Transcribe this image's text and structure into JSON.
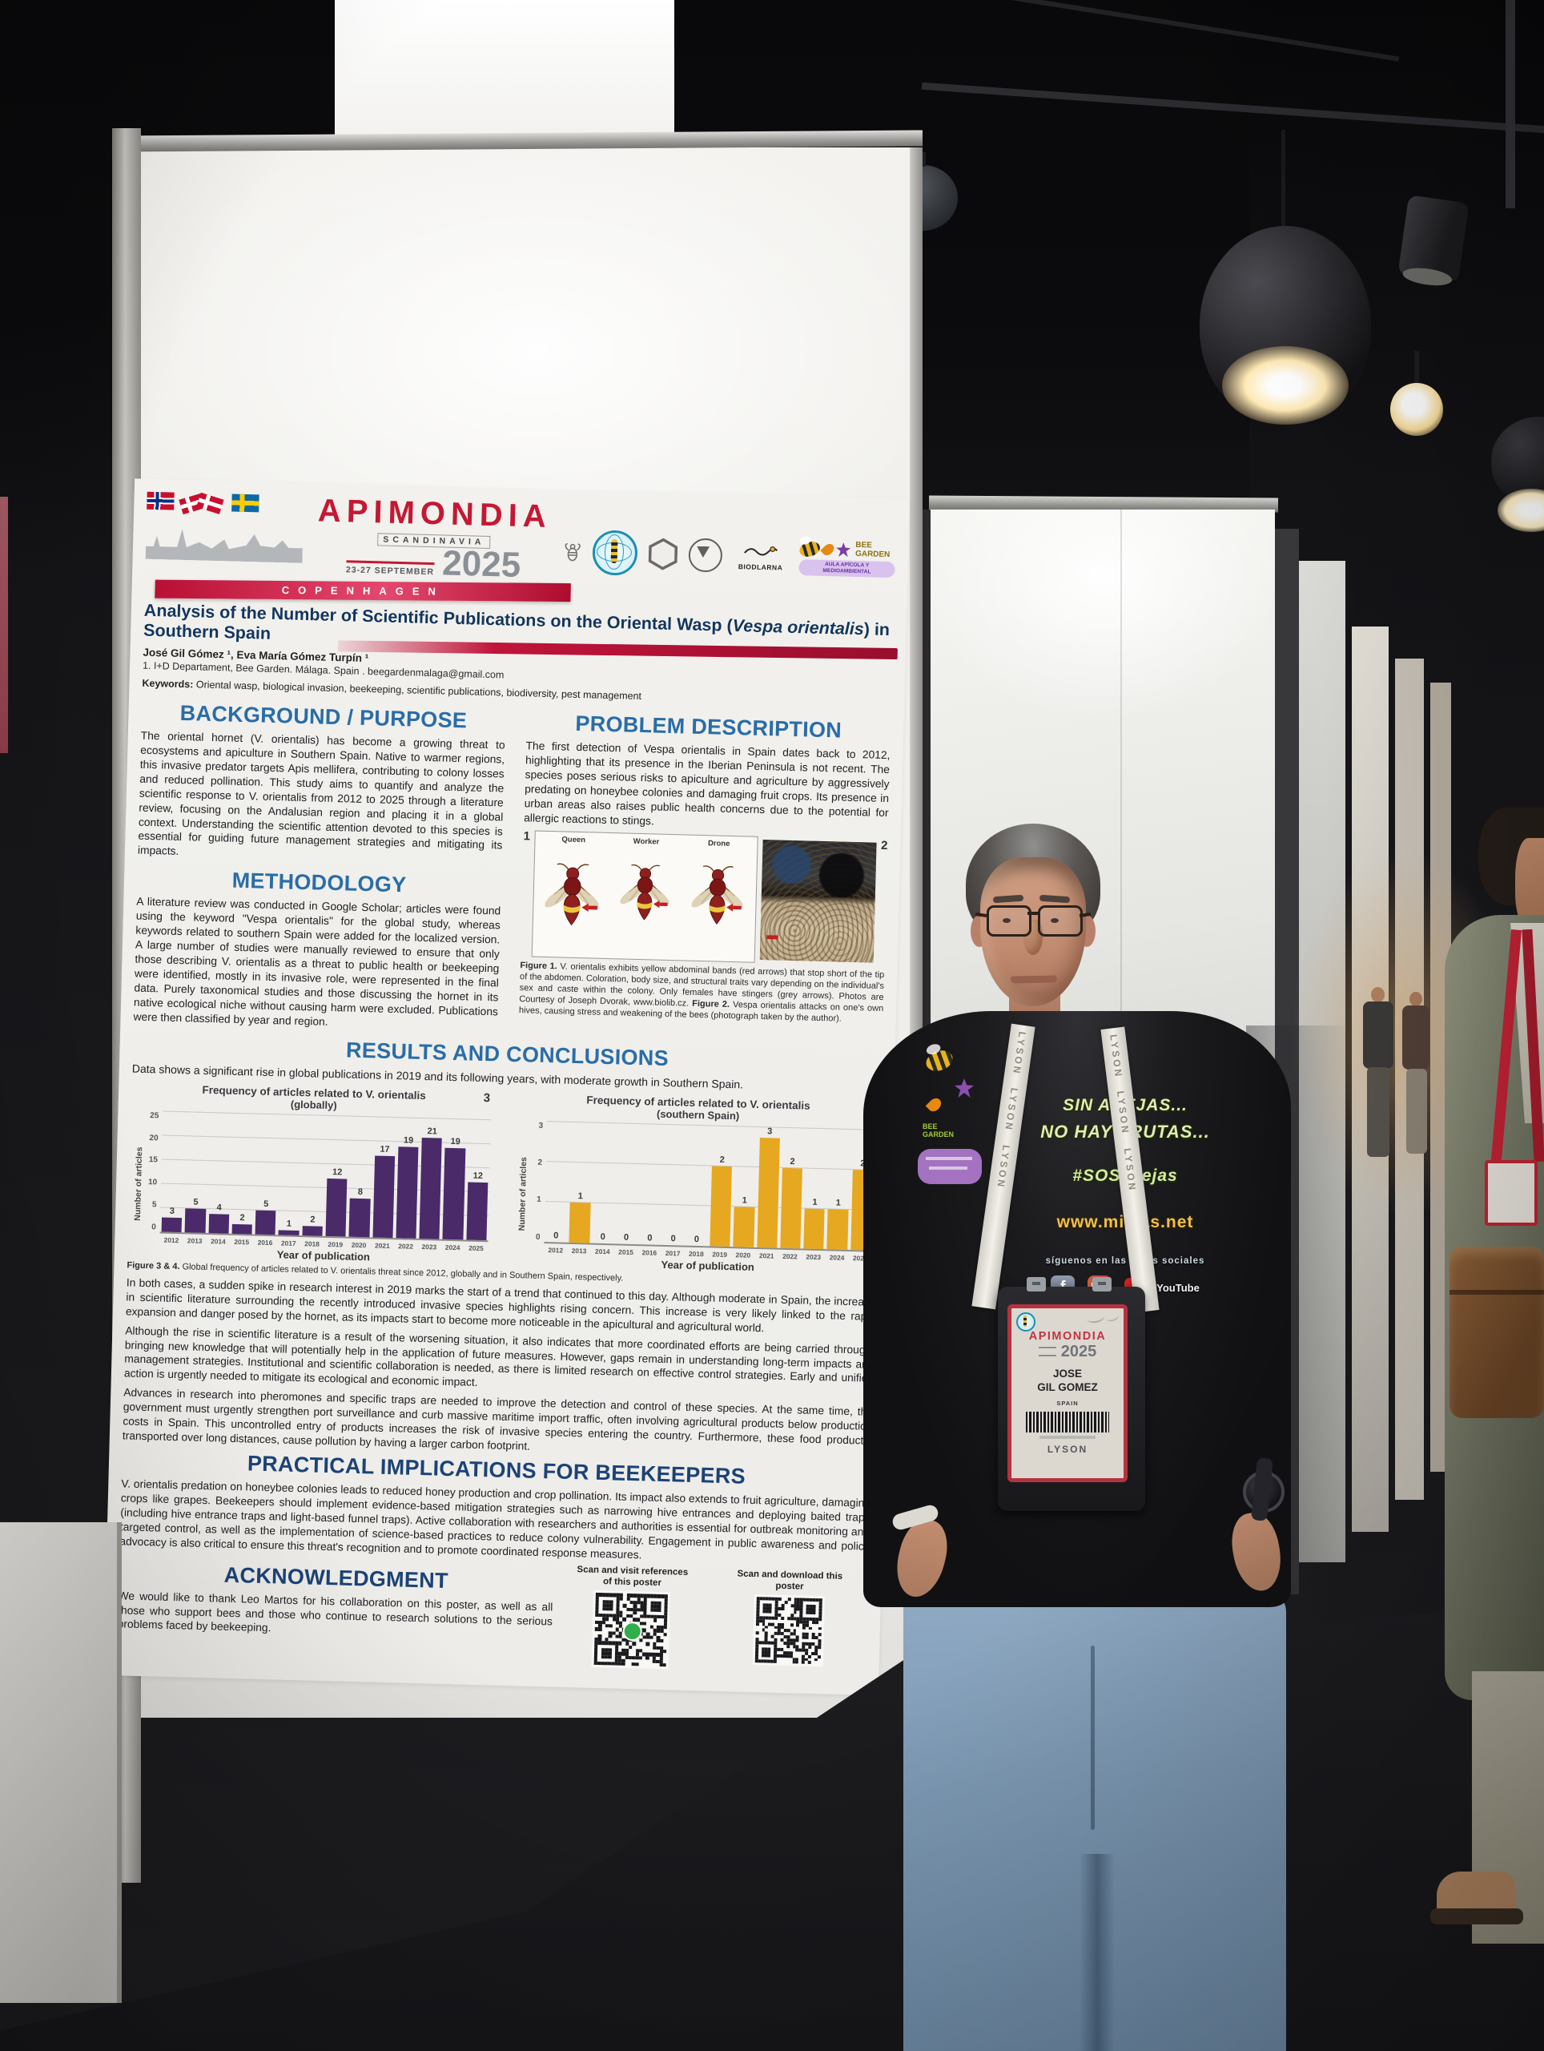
{
  "poster": {
    "header": {
      "conference": "APIMONDIA",
      "region": "SCANDINAVIA",
      "dates": "23-27 SEPTEMBER",
      "year": "2025",
      "city": "COPENHAGEN",
      "biodlarna_label": "BIODLARNA",
      "bee_garden_name": "BEE GARDEN",
      "bee_garden_sub": "AULA APÍCOLA Y MEDIOAMBIENTAL"
    },
    "title": {
      "pre": "Analysis of the Number of Scientific Publications on the Oriental Wasp (",
      "italic": "Vespa orientalis",
      "post": ") in Southern Spain"
    },
    "authors": "José Gil Gómez ¹, Eva María Gómez Turpín ¹",
    "affiliation": "1. I+D Departament, Bee Garden. Málaga. Spain . beegardenmalaga@gmail.com",
    "keywords_label": "Keywords:",
    "keywords": "Oriental wasp, biological invasion, beekeeping, scientific publications, biodiversity, pest management",
    "background": {
      "heading": "BACKGROUND / PURPOSE",
      "body": "The oriental hornet (V. orientalis) has become a growing threat to ecosystems and apiculture in Southern Spain. Native to warmer regions, this invasive predator targets Apis mellifera, contributing to colony losses and reduced pollination. This study aims to quantify and analyze the scientific response to V. orientalis from 2012 to 2025 through a literature review, focusing on the Andalusian region and placing it in a global context. Understanding the scientific attention devoted to this species is essential for guiding future management strategies and mitigating its impacts."
    },
    "problem": {
      "heading": "PROBLEM DESCRIPTION",
      "body": "The first detection of Vespa orientalis in Spain dates back to 2012, highlighting that its presence in the Iberian Peninsula is not recent. The species poses serious risks to apiculture and agriculture by aggressively predating on honeybee colonies and damaging fruit crops. Its presence in urban areas also raises public health concerns due to the potential for allergic reactions to stings."
    },
    "methodology": {
      "heading": "METHODOLOGY",
      "body": "A literature review was conducted in Google Scholar; articles were found using the keyword \"Vespa orientalis\" for the global study, whereas keywords related to southern Spain were added for the localized version. A large number of studies were manually reviewed to ensure that only those describing V. orientalis as a threat to public health or beekeeping were identified, mostly in its invasive role, were represented in the final data. Purely taxonomical studies and those discussing the hornet in its native ecological niche without causing harm were excluded. Publications were then classified by year and region."
    },
    "figures": {
      "marker1": "1",
      "marker2": "2",
      "wasp_labels": [
        "Queen",
        "Worker",
        "Drone"
      ],
      "caption_fig1_label": "Figure 1.",
      "caption_fig1": " V. orientalis exhibits yellow abdominal bands (red arrows) that stop short of the tip of the abdomen. Coloration, body size, and structural traits vary depending on the individual's sex and caste within the colony. Only females have stingers (grey arrows). Photos are Courtesy of Joseph Dvorak, www.biolib.cz. ",
      "caption_fig2_label": "Figure 2.",
      "caption_fig2": " Vespa orientalis attacks on one's own hives, causing stress and weakening of the bees (photograph taken by the author)."
    },
    "results": {
      "heading": "RESULTS AND CONCLUSIONS",
      "intro": "Data shows a significant rise in global publications in 2019 and its following years, with moderate growth in Southern Spain.",
      "fig34_label": "Figure 3 & 4.",
      "fig34_caption": " Global frequency of articles related to V. orientalis threat since 2012, globally and in Southern Spain, respectively.",
      "p1": "In both cases, a sudden spike in research interest in 2019 marks the start of a trend that continued to this day. Although moderate in Spain, the increase in scientific literature surrounding the recently introduced invasive species highlights rising concern. This increase is very likely linked to the rapid expansion and danger posed by the hornet, as its impacts start to become more noticeable in the apicultural and agricultural world.",
      "p2": "Although the rise in scientific literature is a result of the worsening situation, it also indicates that more coordinated efforts are being carried through, bringing new knowledge that will potentially help in the application of future measures. However, gaps remain in understanding long-term impacts and management strategies. Institutional and scientific collaboration is needed, as there is limited research on effective control strategies. Early and unified action is urgently needed to mitigate its ecological and economic impact.",
      "p3": "Advances in research into pheromones and specific traps are needed to improve the detection and control of these species. At the same time, the government must urgently strengthen port surveillance and curb massive maritime import traffic, often involving agricultural products below production costs in Spain. This uncontrolled entry of products increases the risk of invasive species entering the country. Furthermore, these food products, transported over long distances, cause pollution by having a larger carbon footprint."
    },
    "practical": {
      "heading": "PRACTICAL IMPLICATIONS FOR BEEKEEPERS",
      "body": "V. orientalis predation on honeybee colonies leads to reduced honey production and crop pollination. Its impact also extends to fruit agriculture, damaging crops like grapes. Beekeepers should implement evidence-based mitigation strategies such as narrowing hive entrances and deploying baited traps (including hive entrance traps and light-based funnel traps). Active collaboration with researchers and authorities is essential for outbreak monitoring and targeted control, as well as the implementation of science-based practices to reduce colony vulnerability. Engagement in public awareness and policy advocacy is also critical to ensure this threat's recognition and to promote coordinated response measures."
    },
    "acknowledgment": {
      "heading": "ACKNOWLEDGMENT",
      "body": "We would like to thank Leo Martos for his collaboration on this poster, as well as all those who support bees and those who continue to research solutions to the serious problems faced by beekeeping."
    },
    "qr": {
      "left_label": "Scan and visit references of this poster",
      "right_label": "Scan and download this poster"
    }
  },
  "chart_data": [
    {
      "type": "bar",
      "title": "Frequency of articles related to V. orientalis",
      "subtitle": "(globally)",
      "figure_marker": "3",
      "categories": [
        "2012",
        "2013",
        "2014",
        "2015",
        "2016",
        "2017",
        "2018",
        "2019",
        "2020",
        "2021",
        "2022",
        "2023",
        "2024",
        "2025"
      ],
      "values": [
        3,
        5,
        4,
        2,
        5,
        1,
        2,
        12,
        8,
        17,
        19,
        21,
        19,
        12
      ],
      "xlabel": "Year of publication",
      "ylabel": "Number of articles",
      "ylim": [
        0,
        25
      ],
      "yticks": [
        0,
        5,
        10,
        15,
        20,
        25
      ],
      "grid": true,
      "bar_color": "#4b2a6a"
    },
    {
      "type": "bar",
      "title": "Frequency of articles related to V. orientalis",
      "subtitle": "(southern Spain)",
      "figure_marker": "4",
      "categories": [
        "2012",
        "2013",
        "2014",
        "2015",
        "2016",
        "2017",
        "2018",
        "2019",
        "2020",
        "2021",
        "2022",
        "2023",
        "2024",
        "2025"
      ],
      "values": [
        0,
        1,
        0,
        0,
        0,
        0,
        0,
        2,
        1,
        3,
        2,
        1,
        1,
        2
      ],
      "xlabel": "Year of publication",
      "ylabel": "Number of articles",
      "ylim": [
        0,
        3
      ],
      "yticks": [
        0,
        1,
        2,
        3
      ],
      "grid": true,
      "bar_color": "#e5a820"
    }
  ],
  "presenter": {
    "lanyard_brand": "LYSON",
    "badge": {
      "event": "APIMONDIA",
      "year": "2025",
      "name_line1": "JOSE",
      "name_line2": "GIL GO­MEZ",
      "country": "SPAIN",
      "brand": "LYSON"
    },
    "shirt": {
      "line1": "SIN ABEJAS...",
      "line2": "NO HAY FRUTAS...",
      "hashtag": "#SOSabejas",
      "url": "www.mielas.net",
      "social": "síguenos en las redes sociales",
      "youtube": "YouTube",
      "brand": "BEE GARDEN"
    }
  },
  "colors": {
    "heading_blue": "#2a6da8",
    "deep_blue": "#1c4277",
    "accent_red": "#c41834",
    "purple_bar": "#4b2a6a",
    "yellow_bar": "#e5a820"
  }
}
